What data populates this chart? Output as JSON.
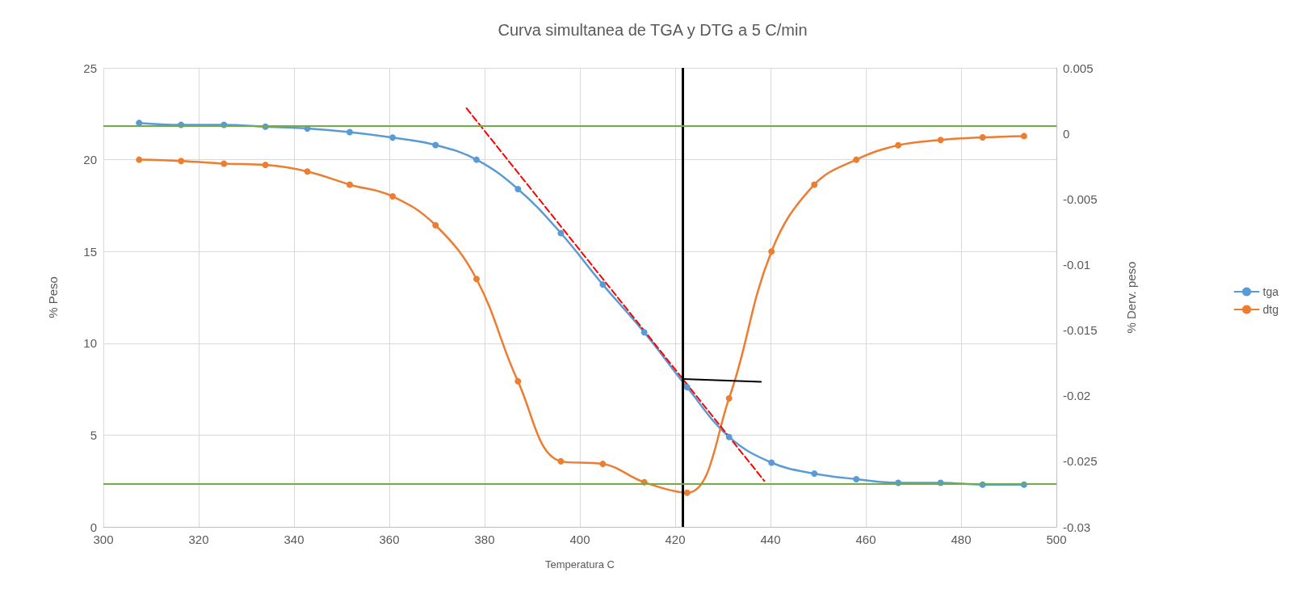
{
  "chart_data": {
    "type": "line",
    "title": "Curva simultanea de TGA y DTG a 5 C/min",
    "xlabel": "Temperatura C",
    "ylabel": "% Peso",
    "y2label": "% Derv. peso",
    "x": [
      307.5,
      316.3,
      325.3,
      334,
      342.8,
      351.7,
      360.7,
      369.7,
      378.3,
      387,
      396,
      404.8,
      413.5,
      422.5,
      431.3,
      440.2,
      449.2,
      458,
      466.8,
      475.7,
      484.5,
      493.2
    ],
    "series": [
      {
        "name": "tga",
        "color": "#5b9bd5",
        "values": [
          22.0,
          21.9,
          21.9,
          21.8,
          21.7,
          21.5,
          21.2,
          20.8,
          20.0,
          18.4,
          16.0,
          13.2,
          10.6,
          7.6,
          4.9,
          3.5,
          2.9,
          2.6,
          2.4,
          2.4,
          2.3,
          2.3
        ]
      },
      {
        "name": "dtg",
        "color": "#ed7d31",
        "axis": "y2",
        "values": [
          -0.002,
          -0.0021,
          -0.0023,
          -0.0024,
          -0.0029,
          -0.0039,
          -0.0048,
          -0.007,
          -0.0111,
          -0.0189,
          -0.025,
          -0.0252,
          -0.0266,
          -0.0274,
          -0.0202,
          -0.009,
          -0.0039,
          -0.002,
          -0.0009,
          -0.0005,
          -0.0003,
          -0.0002
        ]
      },
      {
        "color": "#ff0000",
        "line_style": "dashed",
        "marker": "none",
        "x": [
          376.2,
          438.7
        ],
        "values": [
          22.8,
          2.5
        ]
      },
      {
        "color": "#000000",
        "marker": "none",
        "x": [
          421.5,
          438
        ],
        "values": [
          8.05,
          7.9
        ]
      }
    ],
    "ref_lines": [
      {
        "axis": "x",
        "value": 421.5,
        "color": "#000000"
      },
      {
        "axis": "y",
        "value": 21.85,
        "color": "#70ad47"
      },
      {
        "axis": "y",
        "value": 2.35,
        "color": "#70ad47"
      }
    ],
    "xlim": [
      300,
      500
    ],
    "xticks": [
      300,
      320,
      340,
      360,
      380,
      400,
      420,
      440,
      460,
      480,
      500
    ],
    "ylim": [
      0,
      25
    ],
    "yticks": [
      0,
      5,
      10,
      15,
      20,
      25
    ],
    "y2lim": [
      -0.03,
      0.005
    ],
    "y2ticks": [
      -0.03,
      -0.025,
      -0.02,
      -0.015,
      -0.01,
      -0.005,
      0,
      0.005
    ],
    "grid": true,
    "legend": "right",
    "marker": "circle",
    "line_style": "solid"
  }
}
